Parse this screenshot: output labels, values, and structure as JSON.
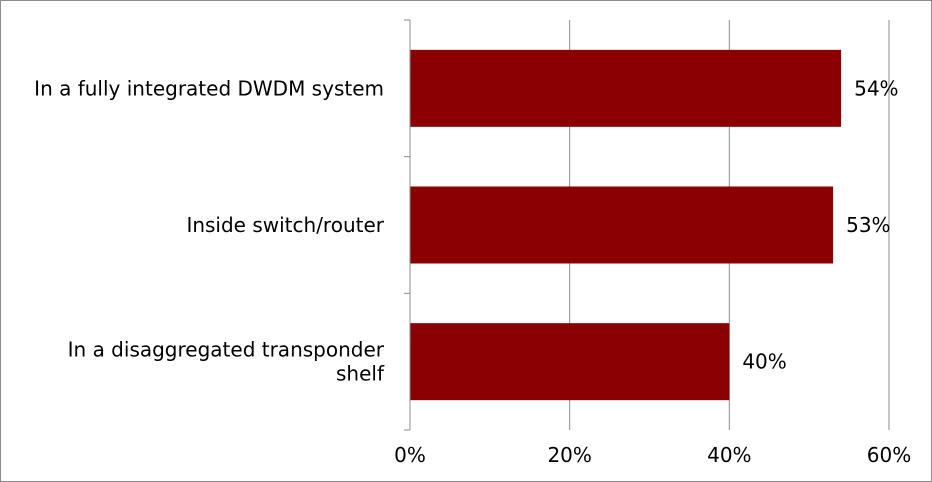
{
  "chart_data": {
    "type": "bar",
    "orientation": "horizontal",
    "categories": [
      [
        "In a fully integrated DWDM system"
      ],
      [
        "Inside switch/router"
      ],
      [
        "In a disaggregated transponder",
        "shelf"
      ]
    ],
    "values": [
      54,
      53,
      40
    ],
    "data_labels": [
      "54%",
      "53%",
      "40%"
    ],
    "x_ticks": [
      0,
      20,
      40,
      60
    ],
    "x_tick_labels": [
      "0%",
      "20%",
      "40%",
      "60%"
    ],
    "xlim": [
      0,
      60
    ],
    "grid": "vertical",
    "legend": "none",
    "bar_color": "#8b0000",
    "title": "",
    "xlabel": "",
    "ylabel": ""
  }
}
